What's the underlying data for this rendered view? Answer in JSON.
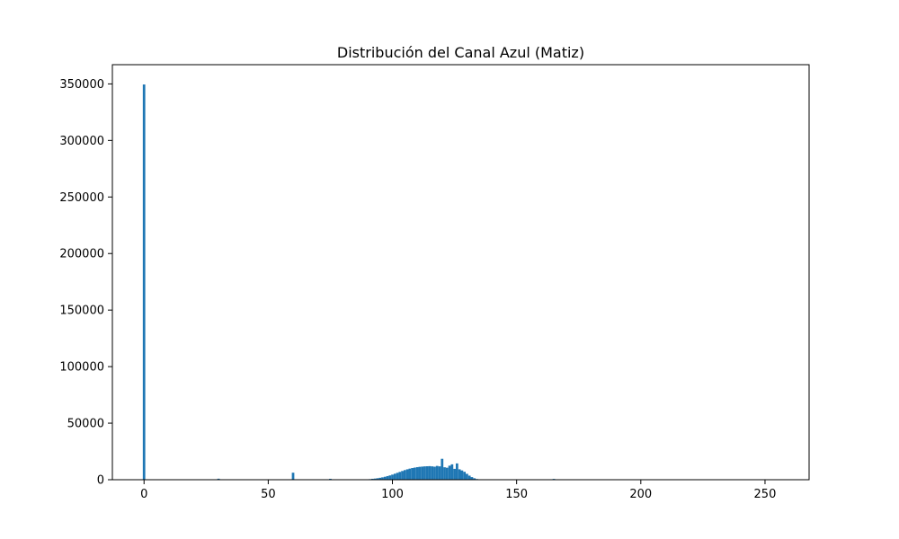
{
  "chart_data": {
    "type": "bar",
    "title": "Distribución del Canal Azul (Matiz)",
    "xlabel": "",
    "ylabel": "",
    "xlim": [
      -12.75,
      267.75
    ],
    "ylim": [
      0,
      367000
    ],
    "x_ticks": [
      0,
      50,
      100,
      150,
      200,
      250
    ],
    "x_tick_labels": [
      "0",
      "50",
      "100",
      "150",
      "200",
      "250"
    ],
    "y_ticks": [
      0,
      50000,
      100000,
      150000,
      200000,
      250000,
      300000,
      350000
    ],
    "y_tick_labels": [
      "0",
      "50000",
      "100000",
      "150000",
      "200000",
      "250000",
      "300000",
      "350000"
    ],
    "bin_width": 1,
    "bar_color": "#1f77b4",
    "x": [
      0,
      30,
      60,
      75,
      90,
      91,
      92,
      93,
      94,
      95,
      96,
      97,
      98,
      99,
      100,
      101,
      102,
      103,
      104,
      105,
      106,
      107,
      108,
      109,
      110,
      111,
      112,
      113,
      114,
      115,
      116,
      117,
      118,
      119,
      120,
      121,
      122,
      123,
      124,
      125,
      126,
      127,
      128,
      129,
      130,
      131,
      132,
      133,
      134,
      135,
      165
    ],
    "values": [
      349500,
      900,
      6200,
      800,
      300,
      500,
      800,
      1000,
      1300,
      1700,
      2100,
      2600,
      3200,
      3800,
      4500,
      5300,
      6100,
      6900,
      7700,
      8500,
      9200,
      9800,
      10300,
      10700,
      11100,
      11400,
      11600,
      11800,
      11900,
      12000,
      11800,
      11500,
      12200,
      11800,
      18500,
      11000,
      10600,
      12400,
      13600,
      9600,
      14400,
      9200,
      8200,
      7000,
      5200,
      3600,
      2300,
      1300,
      600,
      300,
      700
    ]
  }
}
